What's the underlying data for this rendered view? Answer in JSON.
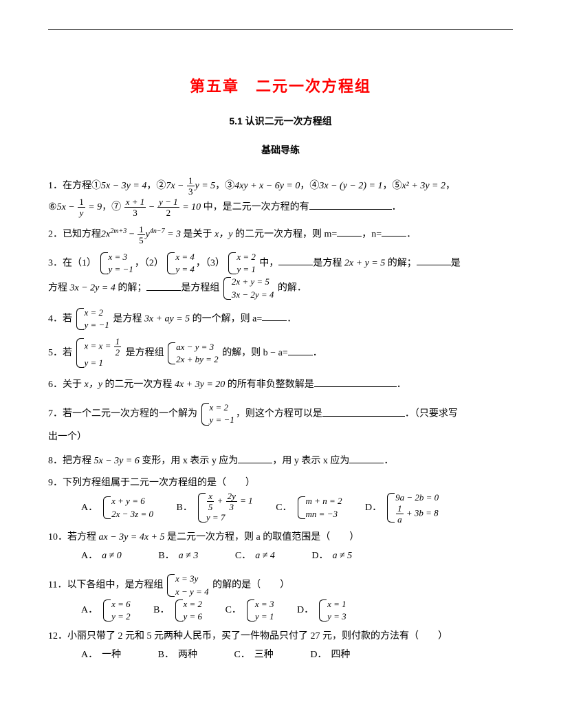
{
  "colors": {
    "accent": "#ff0000",
    "text": "#000000",
    "bg": "#ffffff"
  },
  "chapter_title": "第五章　二元一次方程组",
  "section_title": "5.1 认识二元一次方程组",
  "sub_title": "基础导练",
  "q1": {
    "lead": "1．在方程①",
    "eq1": "5x − 3y = 4",
    "c2": "，②",
    "eq2a": "7x −",
    "frac2": {
      "num": "1",
      "den": "3"
    },
    "eq2b": "y = 5",
    "c3": "，③",
    "eq3": "4xy + x − 6y = 0",
    "c4": "，④",
    "eq4": "3x − (y − 2) = 1",
    "c5": "，⑤",
    "eq5": "x² + 3y = 2",
    "c6": "，",
    "c7": "⑥",
    "eq6a": "5x −",
    "frac6": {
      "num": "1",
      "den": "y"
    },
    "eq6b": " = 9",
    "c8": "，⑦",
    "frac7a": {
      "num": "x + 1",
      "den": "3"
    },
    "eq7m": " − ",
    "frac7b": {
      "num": "y − 1",
      "den": "2"
    },
    "eq7r": " = 10",
    "tail": " 中，是二元一次方程的有",
    "period": "．"
  },
  "q2": {
    "lead": "2．已知方程",
    "eq_a": "2x",
    "sup_a": "2m+3",
    "eq_m": " − ",
    "frac": {
      "num": "1",
      "den": "5"
    },
    "eq_b": "y",
    "sup_b": "4n−7",
    "eq_c": " = 3",
    "mid": " 是关于 ",
    "xy": "x，y",
    "tail": " 的二元一次方程，则 m=",
    "comma": "，n=",
    "period": "．"
  },
  "q3": {
    "lead": "3．在（1）",
    "sys1": {
      "r1": "x = 3",
      "r2": "y = −1"
    },
    "c2": "，（2）",
    "sys2": {
      "r1": "x = 4",
      "r2": "y = 4"
    },
    "c3": "，（3）",
    "sys3": {
      "r1": "x = 2",
      "r2": "y = 1"
    },
    "mid": " 中，",
    "t1": "是方程",
    "eq1": " 2x + y = 5 ",
    "t2": "的解；",
    "t3": "是",
    "line2a": "方程",
    "eq2": " 3x − 2y = 4 ",
    "t4": "的解；",
    "t5": "是方程组",
    "sys4": {
      "r1": "2x + y = 5",
      "r2": "3x − 2y = 4"
    },
    "t6": " 的解．"
  },
  "q4": {
    "lead": "4．若",
    "sys": {
      "r1": "x = 2",
      "r2": "y = −1"
    },
    "mid": " 是方程 ",
    "eq": "3x + ay = 5",
    "tail": " 的一个解，则 a=",
    "period": "．"
  },
  "q5": {
    "lead": "5．若",
    "sys1": {
      "r1a": "x = ",
      "frac": {
        "num": "1",
        "den": "2"
      },
      "r2": "y = 1"
    },
    "mid": " 是方程组",
    "sys2": {
      "r1": "ax − y = 3",
      "r2": "2x + by = 2"
    },
    "tail": " 的解，则 b − a=",
    "period": "．"
  },
  "q6": {
    "lead": "6．关于 ",
    "xy": "x，y",
    "mid": " 的二元一次方程 ",
    "eq": "4x + 3y = 20",
    "tail": " 的所有非负整数解是",
    "period": "．"
  },
  "q7": {
    "lead": "7．若一个二元一次方程的一个解为",
    "sys": {
      "r1": "x = 2",
      "r2": "y = −1"
    },
    "mid": "，则这个方程可以是",
    "tail": "．（只要求写",
    "line2": "出一个）"
  },
  "q8": {
    "lead": "8．把方程 ",
    "eq": "5x − 3y = 6",
    "mid1": " 变形，用 x 表示 y 应为",
    "mid2": "，用 y 表示 x 应为",
    "period": "．"
  },
  "q9": {
    "lead": "9．下列方程组属于二元一次方程组的是（　　）",
    "A": {
      "r1": "x + y = 6",
      "r2": "2x − 3z = 0"
    },
    "B": {
      "r1a": "",
      "fracx": {
        "num": "x",
        "den": "5"
      },
      "plus": " + ",
      "fracy": {
        "num": "2y",
        "den": "3"
      },
      "eq": " = 1",
      "r2": "y = 7"
    },
    "C": {
      "r1": "m + n = 2",
      "r2": "mn = −3"
    },
    "D": {
      "r1": "9a − 2b = 0",
      "r2a": "",
      "frac": {
        "num": "1",
        "den": "a"
      },
      "r2b": " + 3b = 8"
    }
  },
  "q10": {
    "lead": "10．若方程 ",
    "eq": "ax − 3y = 4x + 5",
    "tail": " 是二元一次方程，则 a 的取值范围是（　　）",
    "A": "a ≠ 0",
    "B": "a ≠ 3",
    "C": "a ≠ 4",
    "D": "a ≠ 5"
  },
  "q11": {
    "lead": "11．以下各组中，是方程组",
    "sys": {
      "r1": "x = 3y",
      "r2": "x − y = 4"
    },
    "tail": " 的解的是（　　）",
    "A": {
      "r1": "x = 6",
      "r2": "y = 2"
    },
    "B": {
      "r1": "x = 2",
      "r2": "y = 6"
    },
    "C": {
      "r1": "x = 3",
      "r2": "y = 1"
    },
    "D": {
      "r1": "x = 1",
      "r2": "y = 3"
    }
  },
  "q12": {
    "lead": "12．小丽只带了 2 元和 5 元两种人民币，买了一件物品只付了 27 元，则付款的方法有（　　）",
    "A": "一种",
    "B": "两种",
    "C": "三种",
    "D": "四种"
  },
  "labels": {
    "A": "A．",
    "B": "B．",
    "C": "C．",
    "D": "D．"
  }
}
